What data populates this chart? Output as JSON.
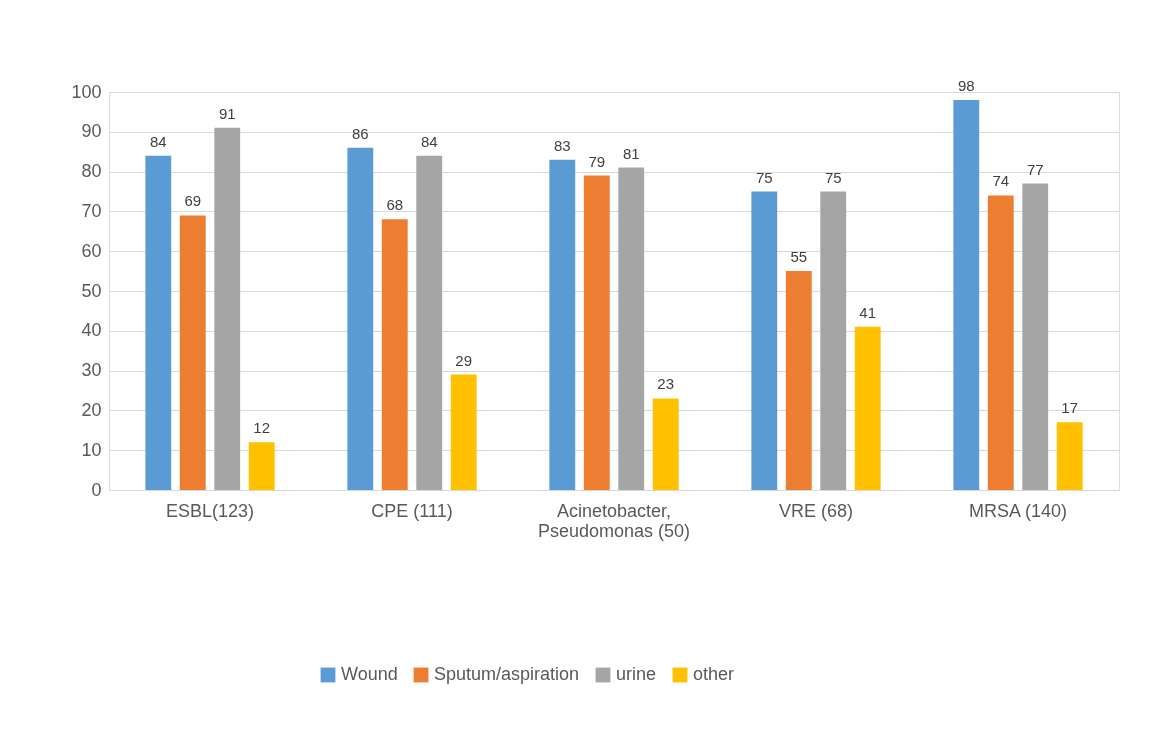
{
  "chart_data": {
    "type": "bar",
    "categories": [
      "ESBL(123)",
      "CPE (111)",
      "Acinetobacter, Pseudomonas (50)",
      "VRE (68)",
      "MRSA (140)"
    ],
    "series": [
      {
        "name": "Wound",
        "color": "#5b9bd5",
        "values": [
          84,
          86,
          83,
          75,
          98
        ]
      },
      {
        "name": "Sputum/aspiration",
        "color": "#ed7d31",
        "values": [
          69,
          68,
          79,
          55,
          74
        ]
      },
      {
        "name": "urine",
        "color": "#a5a5a5",
        "values": [
          91,
          84,
          81,
          75,
          77
        ]
      },
      {
        "name": "other",
        "color": "#ffc000",
        "values": [
          12,
          29,
          23,
          41,
          17
        ]
      }
    ],
    "ylim": [
      0,
      100
    ],
    "yticks": [
      0,
      10,
      20,
      30,
      40,
      50,
      60,
      70,
      80,
      90,
      100
    ],
    "grid": "y",
    "legend": "bottom",
    "data_labels": true
  }
}
